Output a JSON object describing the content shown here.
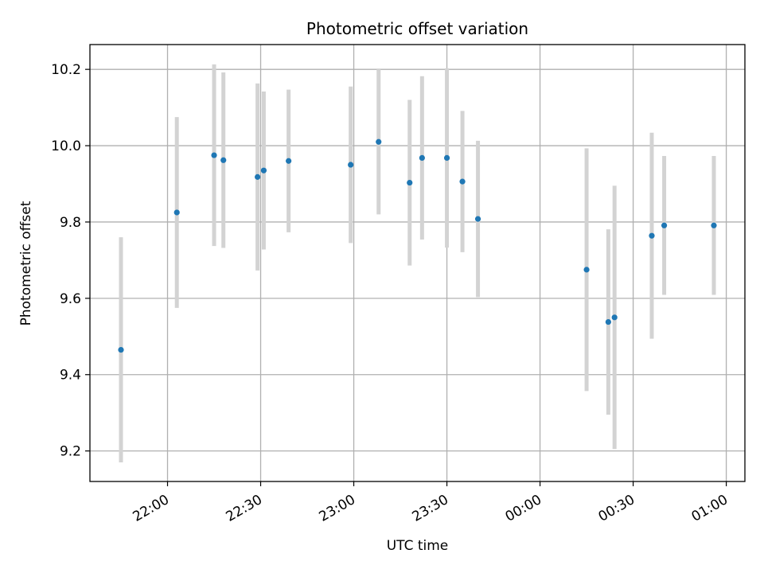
{
  "chart_data": {
    "type": "scatter",
    "title": "Photometric offset variation",
    "xlabel": "UTC time",
    "ylabel": "Photometric offset",
    "x_axis_type": "time",
    "xlim": [
      "21:35",
      "01:06"
    ],
    "ylim": [
      9.12,
      10.265
    ],
    "grid": true,
    "x_ticks": [
      "22:00",
      "22:30",
      "23:00",
      "23:30",
      "00:00",
      "00:30",
      "01:00"
    ],
    "y_ticks": [
      "9.2",
      "9.4",
      "9.6",
      "9.8",
      "10.0",
      "10.2"
    ],
    "point_color": "#1f77b4",
    "errorbar_color": "#d3d3d3",
    "points": [
      {
        "x": "21:45",
        "y": 9.465,
        "err": 0.295
      },
      {
        "x": "22:03",
        "y": 9.825,
        "err": 0.25
      },
      {
        "x": "22:15",
        "y": 9.975,
        "err": 0.238
      },
      {
        "x": "22:18",
        "y": 9.962,
        "err": 0.23
      },
      {
        "x": "22:29",
        "y": 9.918,
        "err": 0.245
      },
      {
        "x": "22:31",
        "y": 9.935,
        "err": 0.207
      },
      {
        "x": "22:39",
        "y": 9.96,
        "err": 0.187
      },
      {
        "x": "22:59",
        "y": 9.95,
        "err": 0.205
      },
      {
        "x": "23:08",
        "y": 10.01,
        "err": 0.19
      },
      {
        "x": "23:18",
        "y": 9.903,
        "err": 0.217
      },
      {
        "x": "23:22",
        "y": 9.968,
        "err": 0.214
      },
      {
        "x": "23:30",
        "y": 9.968,
        "err": 0.235
      },
      {
        "x": "23:35",
        "y": 9.906,
        "err": 0.185
      },
      {
        "x": "23:40",
        "y": 9.808,
        "err": 0.205
      },
      {
        "x": "00:15",
        "y": 9.675,
        "err": 0.318
      },
      {
        "x": "00:22",
        "y": 9.538,
        "err": 0.243
      },
      {
        "x": "00:24",
        "y": 9.55,
        "err": 0.345
      },
      {
        "x": "00:36",
        "y": 9.764,
        "err": 0.27
      },
      {
        "x": "00:40",
        "y": 9.791,
        "err": 0.182
      },
      {
        "x": "00:56",
        "y": 9.791,
        "err": 0.182
      }
    ]
  }
}
